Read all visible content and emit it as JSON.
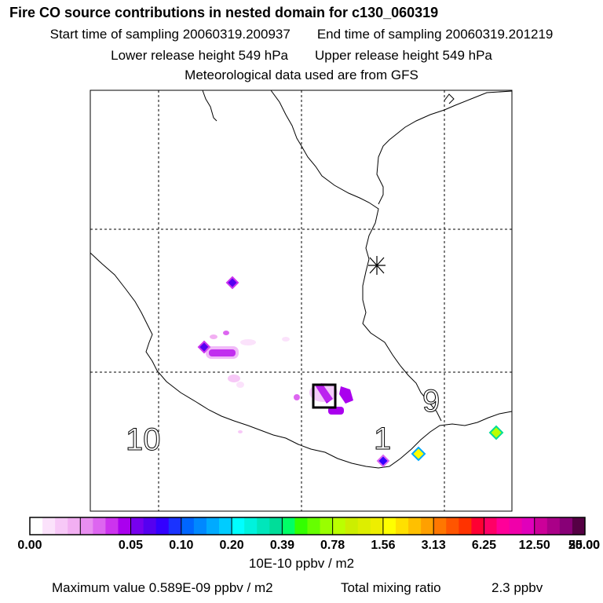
{
  "header": {
    "title": "Fire CO source contributions in nested domain for c130_060319",
    "start_label": "Start time of sampling 20060319.200937",
    "end_label": "End time of sampling 20060319.201219",
    "lower_label": "Lower release height  549 hPa",
    "upper_label": "Upper release height  549 hPa",
    "met_label": "Meteorological data used are from GFS"
  },
  "map": {
    "zone_labels": [
      "10",
      "1",
      "9"
    ],
    "receptor_marker": "asterisk"
  },
  "chart_data": {
    "type": "heatmap",
    "title": "Fire CO source contributions in nested domain for c130_060319",
    "colorbar": {
      "tick_labels": [
        "0.00",
        "0.05",
        "0.10",
        "0.20",
        "0.39",
        "0.78",
        "1.56",
        "3.13",
        "6.25",
        "12.50",
        "25.00",
        "50.00"
      ],
      "units": "10E-10 ppbv / m2",
      "colors": [
        [
          "#ffffff",
          "#fbe2fb",
          "#f7c8f7",
          "#f2aff2"
        ],
        [
          "#e88ef0",
          "#dd66f0",
          "#cc33ee",
          "#aa00ee"
        ],
        [
          "#7700ee",
          "#5500f0",
          "#3300ff",
          "#1a33ff"
        ],
        [
          "#0066ff",
          "#0088ff",
          "#00aaff",
          "#00ccff"
        ],
        [
          "#00ffff",
          "#00f2dd",
          "#00e6bb",
          "#00dd99"
        ],
        [
          "#00ff66",
          "#33ff00",
          "#66ff00",
          "#99ff00"
        ],
        [
          "#bbff00",
          "#ccee00",
          "#ddee00",
          "#eeee00"
        ],
        [
          "#ffff00",
          "#ffe000",
          "#ffc000",
          "#ffa000"
        ],
        [
          "#ff7700",
          "#ff5500",
          "#ff3300",
          "#ff0033"
        ],
        [
          "#ff0066",
          "#ff0099",
          "#f000aa",
          "#e000bb"
        ],
        [
          "#cc0099",
          "#aa0088",
          "#880077",
          "#550044"
        ]
      ],
      "min": 0.0,
      "max": 50.0
    },
    "max_value_label": "Maximum value  0.589E-09 ppbv / m2",
    "total_label": "Total mixing ratio",
    "total_value": "2.3 ppbv"
  }
}
